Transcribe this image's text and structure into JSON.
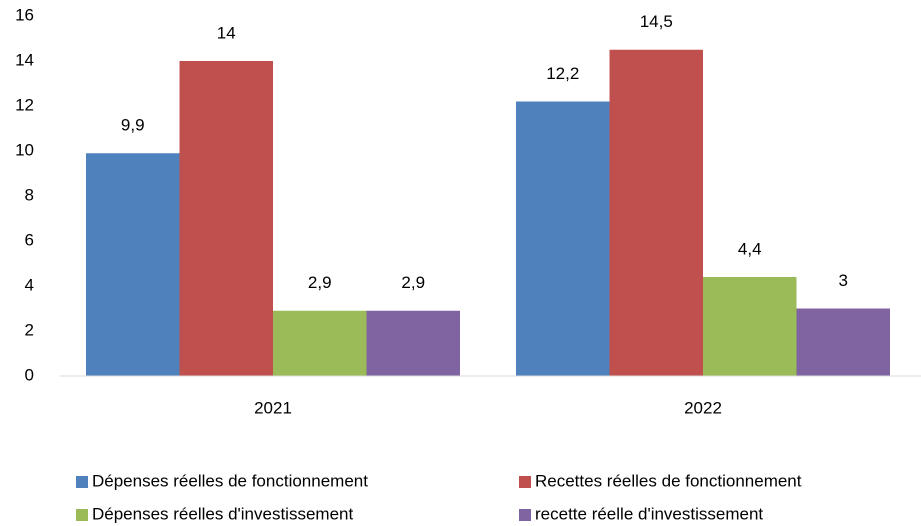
{
  "chart_data": {
    "type": "bar",
    "categories": [
      "2021",
      "2022"
    ],
    "series": [
      {
        "name": "Dépenses réelles de fonctionnement",
        "color": "#4f81bd",
        "values": [
          9.9,
          12.2
        ],
        "value_labels": [
          "9,9",
          "12,2"
        ]
      },
      {
        "name": "Recettes réelles de fonctionnement",
        "color": "#c0504d",
        "values": [
          14,
          14.5
        ],
        "value_labels": [
          "14",
          "14,5"
        ]
      },
      {
        "name": "Dépenses réelles d'investissement",
        "color": "#9bbb59",
        "values": [
          2.9,
          4.4
        ],
        "value_labels": [
          "2,9",
          "4,4"
        ]
      },
      {
        "name": "recette réelle d'investissement",
        "color": "#8064a2",
        "values": [
          2.9,
          3
        ],
        "value_labels": [
          "2,9",
          "3"
        ]
      }
    ],
    "ylim": [
      0,
      16
    ],
    "yticks": [
      0,
      2,
      4,
      6,
      8,
      10,
      12,
      14,
      16
    ],
    "grid": false,
    "legend": "bottom"
  }
}
